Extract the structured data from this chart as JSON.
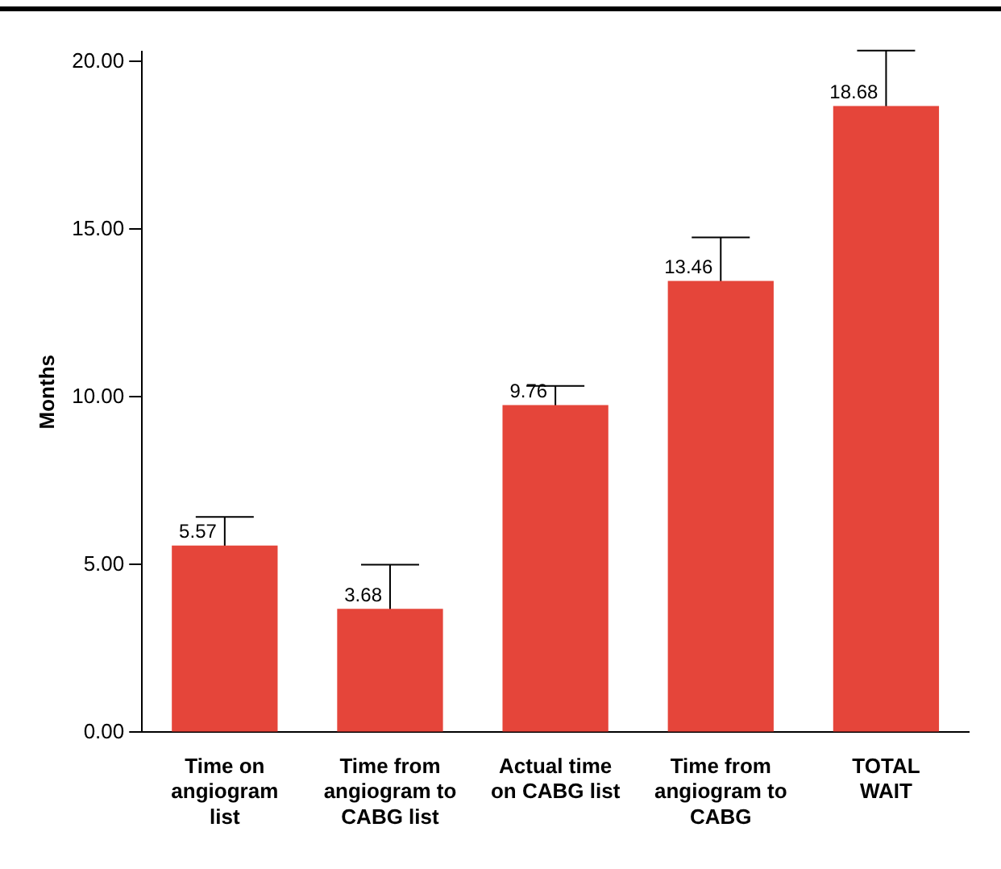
{
  "chart_data": {
    "type": "bar",
    "ylabel": "Months",
    "categories": [
      "Time on\nangiogram\nlist",
      "Time from\nangiogram to\nCABG list",
      "Actual time\non CABG list",
      "Time from\nangiogram to\nCABG",
      "TOTAL\nWAIT"
    ],
    "values": [
      5.57,
      3.68,
      9.76,
      13.46,
      18.68
    ],
    "errors": [
      0.85,
      1.32,
      0.57,
      1.3,
      1.65
    ],
    "color": "#e5453a",
    "ylim": [
      0,
      20.3
    ],
    "yticks": [
      {
        "value": 0,
        "label": "0.00"
      },
      {
        "value": 5,
        "label": "5.00"
      },
      {
        "value": 10,
        "label": "10.00"
      },
      {
        "value": 15,
        "label": "15.00"
      },
      {
        "value": 20,
        "label": "20.00"
      }
    ],
    "data_labels": true,
    "grid": false,
    "legend": false
  }
}
